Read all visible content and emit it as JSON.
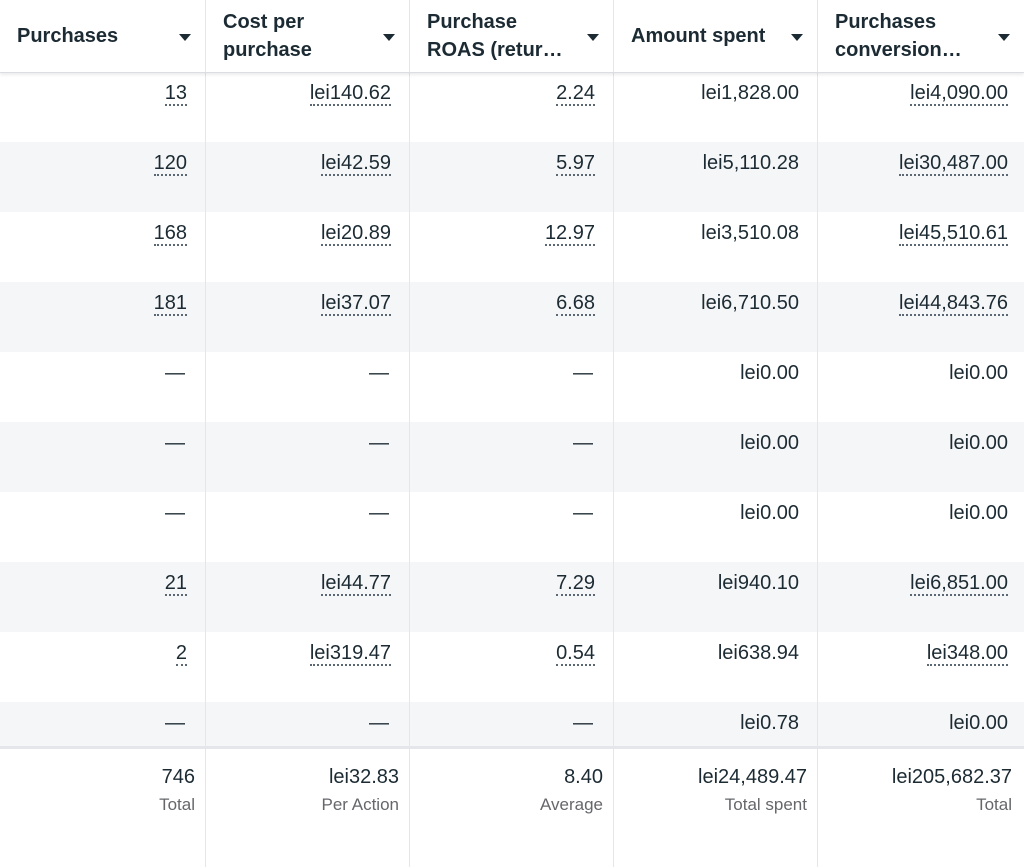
{
  "columns": [
    {
      "label": "Purchases"
    },
    {
      "label": "Cost per purchase"
    },
    {
      "label": "Purchase ROAS (return on ad spend)"
    },
    {
      "label": "Amount spent"
    },
    {
      "label": "Purchases conversion value"
    }
  ],
  "rows": [
    {
      "purchases": "13",
      "cost_per_purchase": "lei140.62",
      "roas": "2.24",
      "amount_spent": "lei1,828.00",
      "conversion_value": "lei4,090.00"
    },
    {
      "purchases": "120",
      "cost_per_purchase": "lei42.59",
      "roas": "5.97",
      "amount_spent": "lei5,110.28",
      "conversion_value": "lei30,487.00"
    },
    {
      "purchases": "168",
      "cost_per_purchase": "lei20.89",
      "roas": "12.97",
      "amount_spent": "lei3,510.08",
      "conversion_value": "lei45,510.61"
    },
    {
      "purchases": "181",
      "cost_per_purchase": "lei37.07",
      "roas": "6.68",
      "amount_spent": "lei6,710.50",
      "conversion_value": "lei44,843.76"
    },
    {
      "purchases": "—",
      "cost_per_purchase": "—",
      "roas": "—",
      "amount_spent": "lei0.00",
      "conversion_value": "lei0.00"
    },
    {
      "purchases": "—",
      "cost_per_purchase": "—",
      "roas": "—",
      "amount_spent": "lei0.00",
      "conversion_value": "lei0.00"
    },
    {
      "purchases": "—",
      "cost_per_purchase": "—",
      "roas": "—",
      "amount_spent": "lei0.00",
      "conversion_value": "lei0.00"
    },
    {
      "purchases": "21",
      "cost_per_purchase": "lei44.77",
      "roas": "7.29",
      "amount_spent": "lei940.10",
      "conversion_value": "lei6,851.00"
    },
    {
      "purchases": "2",
      "cost_per_purchase": "lei319.47",
      "roas": "0.54",
      "amount_spent": "lei638.94",
      "conversion_value": "lei348.00"
    },
    {
      "purchases": "—",
      "cost_per_purchase": "—",
      "roas": "—",
      "amount_spent": "lei0.78",
      "conversion_value": "lei0.00"
    }
  ],
  "totals": [
    {
      "value": "746",
      "label": "Total"
    },
    {
      "value": "lei32.83",
      "label": "Per Action"
    },
    {
      "value": "8.40",
      "label": "Average"
    },
    {
      "value": "lei24,489.47",
      "label": "Total spent"
    },
    {
      "value": "lei205,682.37",
      "label": "Total"
    }
  ],
  "icons": {
    "sort": "caret-down-icon"
  },
  "colors": {
    "text": "#1c2b33",
    "muted": "#65676b",
    "row_alt": "#f5f6f7",
    "grid": "#e4e6eb"
  }
}
